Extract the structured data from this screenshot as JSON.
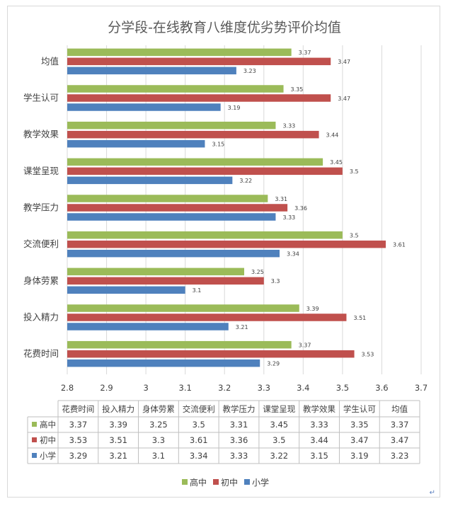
{
  "chart_data": {
    "type": "bar",
    "orientation": "horizontal",
    "title": "分学段-在线教育八维度优劣势评价均值",
    "categories": [
      "花费时间",
      "投入精力",
      "身体劳累",
      "交流便利",
      "教学压力",
      "课堂呈现",
      "教学效果",
      "学生认可",
      "均值"
    ],
    "series": [
      {
        "name": "高中",
        "color": "#9bbb59",
        "values": [
          3.37,
          3.39,
          3.25,
          3.5,
          3.31,
          3.45,
          3.33,
          3.35,
          3.37
        ]
      },
      {
        "name": "初中",
        "color": "#c0504d",
        "values": [
          3.53,
          3.51,
          3.3,
          3.61,
          3.36,
          3.5,
          3.44,
          3.47,
          3.47
        ]
      },
      {
        "name": "小学",
        "color": "#4f81bd",
        "values": [
          3.29,
          3.21,
          3.1,
          3.34,
          3.33,
          3.22,
          3.15,
          3.19,
          3.23
        ]
      }
    ],
    "xlim": [
      2.8,
      3.7
    ],
    "xticks": [
      "2.8",
      "2.9",
      "3",
      "3.1",
      "3.2",
      "3.3",
      "3.4",
      "3.5",
      "3.6",
      "3.7"
    ],
    "grid": true,
    "legend_position": "bottom",
    "data_table": true
  }
}
